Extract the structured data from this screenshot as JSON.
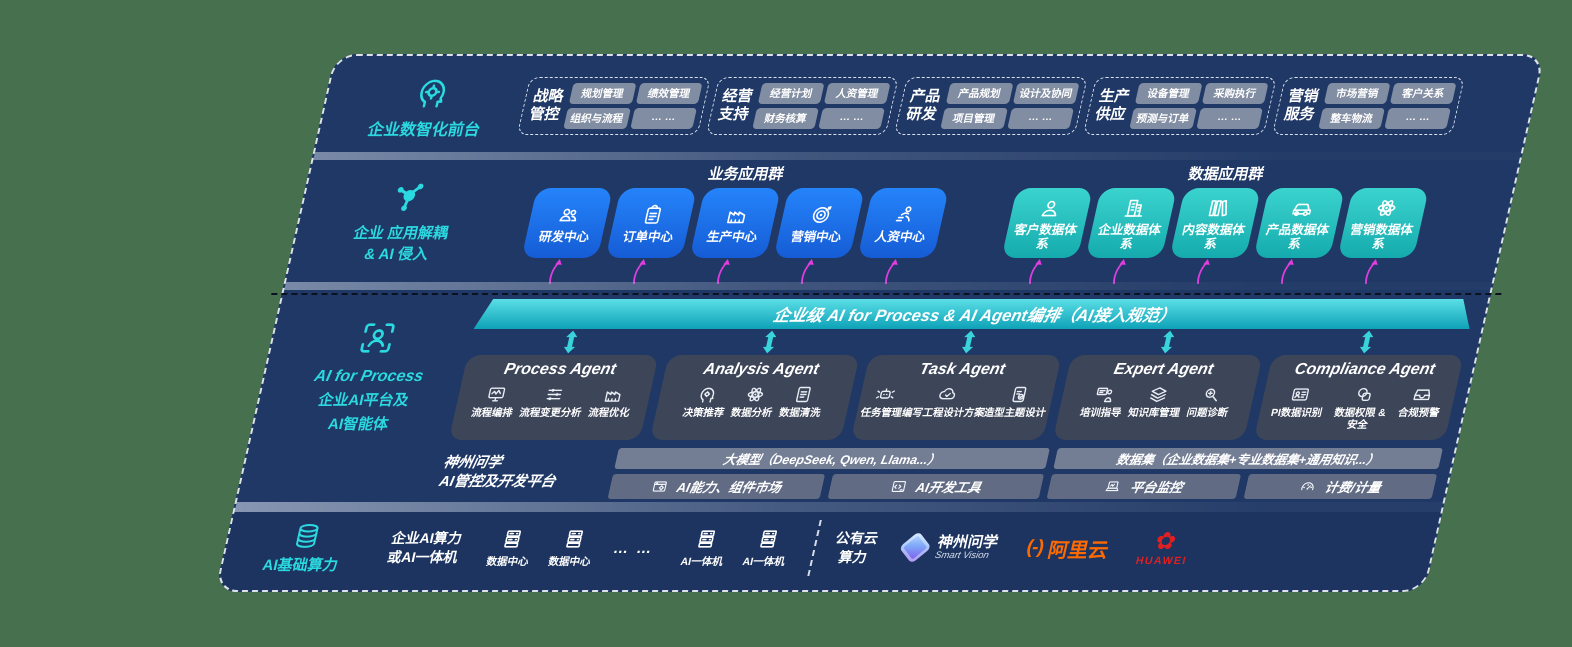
{
  "colors": {
    "background": "#47714E",
    "panel_navy": "#1F3865",
    "accent_cyan": "#2BD9E0",
    "business_blue": "#1E78F0",
    "data_teal": "#2BC7C7",
    "flow_magenta": "#E23EDF",
    "aliyun_orange": "#FF6A00",
    "huawei_red": "#E02020"
  },
  "front_band": {
    "icon": "head-circuit-icon",
    "label": "企业数智化前台",
    "groups": [
      {
        "name_line1": "战略",
        "name_line2": "管控",
        "items": [
          "规划管理",
          "绩效管理",
          "组织与流程",
          "… …"
        ]
      },
      {
        "name_line1": "经营",
        "name_line2": "支持",
        "items": [
          "经营计划",
          "人资管理",
          "财务核算",
          "… …"
        ]
      },
      {
        "name_line1": "产品",
        "name_line2": "研发",
        "items": [
          "产品规划",
          "设计及协同",
          "项目管理",
          "… …"
        ]
      },
      {
        "name_line1": "生产",
        "name_line2": "供应",
        "items": [
          "设备管理",
          "采购执行",
          "预测与订单",
          "… …"
        ]
      },
      {
        "name_line1": "营销",
        "name_line2": "服务",
        "items": [
          "市场营销",
          "客户关系",
          "整车物流",
          "… …"
        ]
      }
    ]
  },
  "apps_band": {
    "icon": "molecule-icon",
    "label_line1": "企业 应用解耦",
    "label_line2": "& AI 侵入",
    "business_group": {
      "title": "业务应用群",
      "apps": [
        {
          "label": "研发中心",
          "icon": "team-icon"
        },
        {
          "label": "订单中心",
          "icon": "clipboard-icon"
        },
        {
          "label": "生产中心",
          "icon": "factory-icon"
        },
        {
          "label": "营销中心",
          "icon": "target-icon"
        },
        {
          "label": "人资中心",
          "icon": "people-run-icon"
        }
      ]
    },
    "data_group": {
      "title": "数据应用群",
      "apps": [
        {
          "label": "客户数据体系",
          "icon": "person-icon"
        },
        {
          "label": "企业数据体系",
          "icon": "building-icon"
        },
        {
          "label": "内容数据体系",
          "icon": "books-icon"
        },
        {
          "label": "产品数据体系",
          "icon": "car-icon"
        },
        {
          "label": "营销数据体系",
          "icon": "atom-icon"
        }
      ]
    }
  },
  "ai_band": {
    "icon": "person-focus-icon",
    "label_line1": "AI for Process",
    "label_line2": "企业AI平台及",
    "label_line3": "AI智能体",
    "orchestration_bar": "企业级 AI for Process & AI Agent编排（AI接入规范）",
    "agents": [
      {
        "title": "Process Agent",
        "items": [
          {
            "label": "流程编排",
            "icon": "monitor-wave-icon"
          },
          {
            "label": "流程变更分析",
            "icon": "sliders-icon"
          },
          {
            "label": "流程优化",
            "icon": "factory-icon"
          }
        ]
      },
      {
        "title": "Analysis Agent",
        "items": [
          {
            "label": "决策推荐",
            "icon": "head-gear-icon"
          },
          {
            "label": "数据分析",
            "icon": "atom-icon"
          },
          {
            "label": "数据清洗",
            "icon": "doc-icon"
          }
        ]
      },
      {
        "title": "Task Agent",
        "items": [
          {
            "label": "任务管理",
            "icon": "bot-icon"
          },
          {
            "label": "编写工程设计方案",
            "icon": "cloud-icon"
          },
          {
            "label": "造型主题设计",
            "icon": "tablet-check-icon"
          }
        ]
      },
      {
        "title": "Expert Agent",
        "items": [
          {
            "label": "培训指导",
            "icon": "training-icon"
          },
          {
            "label": "知识库管理",
            "icon": "layers-icon"
          },
          {
            "label": "问题诊断",
            "icon": "diagnose-icon"
          }
        ]
      },
      {
        "title": "Compliance Agent",
        "items": [
          {
            "label": "PI数据识别",
            "icon": "id-card-icon"
          },
          {
            "label": "数据权限 & 安全",
            "icon": "shapes-icon"
          },
          {
            "label": "合规预警",
            "icon": "tray-icon"
          }
        ]
      }
    ],
    "platform": {
      "label_line1": "神州问学",
      "label_line2": "AI管控及开发平台",
      "model_panel": {
        "header": "大模型（DeepSeek, Qwen, Llama...）",
        "cells": [
          {
            "label": "AI能力、组件市场",
            "icon": "module-icon"
          },
          {
            "label": "AI开发工具",
            "icon": "devtools-icon"
          }
        ]
      },
      "data_panel": {
        "header": "数据集（企业数据集+专业数据集+通用知识...）",
        "cells": [
          {
            "label": "平台监控",
            "icon": "laptop-icon"
          },
          {
            "label": "计费/计量",
            "icon": "gauge-icon"
          }
        ]
      }
    }
  },
  "compute_band": {
    "icon": "database-icon",
    "label": "AI基础算力",
    "capacity_line1": "企业AI算力",
    "capacity_line2": "或AI一体机",
    "nodes_left": [
      {
        "label": "数据中心",
        "icon": "server-icon"
      },
      {
        "label": "数据中心",
        "icon": "server-icon"
      }
    ],
    "ellipsis": "… …",
    "nodes_right": [
      {
        "label": "AI一体机",
        "icon": "server-icon"
      },
      {
        "label": "AI一体机",
        "icon": "server-icon"
      }
    ],
    "public_cloud_line1": "公有云",
    "public_cloud_line2": "算力",
    "vendors": {
      "smartvision": {
        "name": "神州问学",
        "subtitle": "Smart Vision"
      },
      "aliyun": {
        "mark": "(-)",
        "name": "阿里云"
      },
      "huawei": {
        "name": "HUAWEI",
        "flower": "✿"
      }
    }
  }
}
